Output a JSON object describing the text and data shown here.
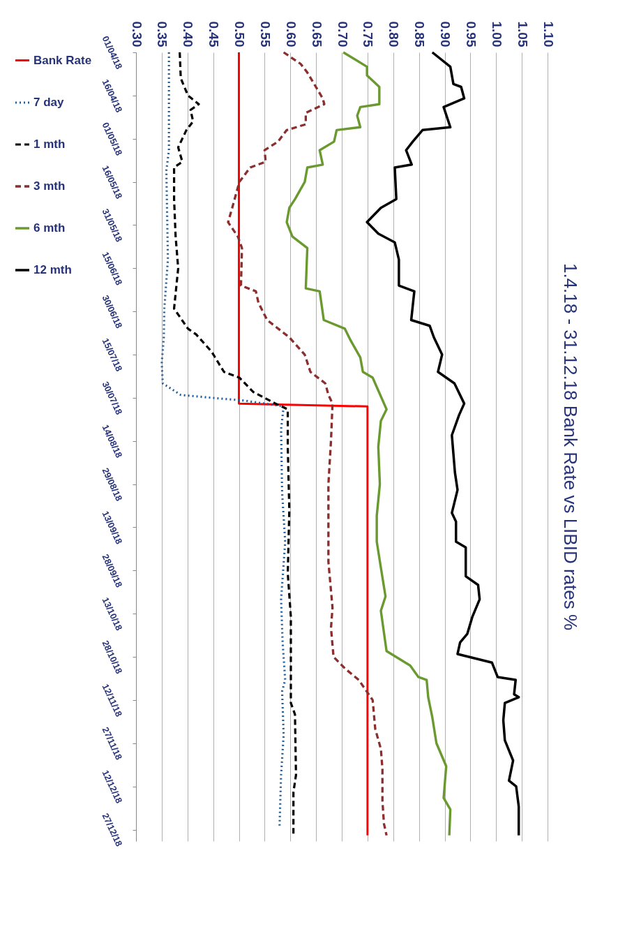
{
  "chart_data": {
    "type": "line",
    "title": "1.4.18 - 31.12.18 Bank Rate vs LIBID rates %",
    "orientation": "horizontal",
    "ylim": [
      "--12-31",
      "--04-01"
    ],
    "yticks": [
      {
        "value": "--04-01",
        "label": "01/04/18"
      },
      {
        "value": "--04-16",
        "label": "16/04/18"
      },
      {
        "value": "--05-01",
        "label": "01/05/18"
      },
      {
        "value": "--05-16",
        "label": "16/05/18"
      },
      {
        "value": "--05-31",
        "label": "31/05/18"
      },
      {
        "value": "--06-15",
        "label": "15/06/18"
      },
      {
        "value": "--06-30",
        "label": "30/06/18"
      },
      {
        "value": "--07-15",
        "label": "15/07/18"
      },
      {
        "value": "--07-30",
        "label": "30/07/18"
      },
      {
        "value": "--08-14",
        "label": "14/08/18"
      },
      {
        "value": "--08-29",
        "label": "29/08/18"
      },
      {
        "value": "--09-13",
        "label": "13/09/18"
      },
      {
        "value": "--09-28",
        "label": "28/09/18"
      },
      {
        "value": "--10-13",
        "label": "13/10/18"
      },
      {
        "value": "--10-28",
        "label": "28/10/18"
      },
      {
        "value": "--11-12",
        "label": "12/11/18"
      },
      {
        "value": "--11-27",
        "label": "27/11/18"
      },
      {
        "value": "--12-12",
        "label": "12/12/18"
      },
      {
        "value": "--12-27",
        "label": "27/12/18"
      }
    ],
    "xlim": [
      0.3,
      1.1
    ],
    "xticks": [
      {
        "value": 0.3,
        "label": "0.30"
      },
      {
        "value": 0.35,
        "label": "0.35"
      },
      {
        "value": 0.4,
        "label": "0.40"
      },
      {
        "value": 0.45,
        "label": "0.45"
      },
      {
        "value": 0.5,
        "label": "0.50"
      },
      {
        "value": 0.55,
        "label": "0.55"
      },
      {
        "value": 0.6,
        "label": "0.60"
      },
      {
        "value": 0.65,
        "label": "0.65"
      },
      {
        "value": 0.7,
        "label": "0.70"
      },
      {
        "value": 0.75,
        "label": "0.75"
      },
      {
        "value": 0.8,
        "label": "0.80"
      },
      {
        "value": 0.85,
        "label": "0.85"
      },
      {
        "value": 0.9,
        "label": "0.90"
      },
      {
        "value": 0.95,
        "label": "0.95"
      },
      {
        "value": 1.0,
        "label": "1.00"
      },
      {
        "value": 1.05,
        "label": "1.05"
      },
      {
        "value": 1.1,
        "label": "1.10"
      }
    ],
    "grid": "x",
    "legend": "left",
    "marker": "none",
    "series": [
      {
        "name": "Bank Rate",
        "color": "#ff0000",
        "line_style": "solid",
        "x": [
          "--04-01",
          "--08-01",
          "--08-02",
          "--12-29"
        ],
        "values": [
          0.5,
          0.5,
          0.75,
          0.75
        ]
      },
      {
        "name": "7 day",
        "color": "#1f5c99",
        "line_style": "dotted",
        "x": [
          "--04-01",
          "--05-05",
          "--05-12",
          "--06-12",
          "--06-29",
          "--07-09",
          "--07-18",
          "--07-25",
          "--07-29",
          "--07-30",
          "--07-31",
          "--08-02",
          "--08-10",
          "--09-01",
          "--09-18",
          "--10-08",
          "--10-23",
          "--11-05",
          "--11-09",
          "--11-24",
          "--12-08",
          "--12-26"
        ],
        "values": [
          0.364,
          0.364,
          0.359,
          0.362,
          0.355,
          0.354,
          0.35,
          0.352,
          0.387,
          0.447,
          0.512,
          0.587,
          0.582,
          0.584,
          0.59,
          0.582,
          0.585,
          0.59,
          0.584,
          0.587,
          0.582,
          0.579
        ]
      },
      {
        "name": "1 mth",
        "color": "#000000",
        "line_style": "dashed",
        "x": [
          "--04-01",
          "--04-10",
          "--04-16",
          "--04-19",
          "--04-21",
          "--04-25",
          "--04-28",
          "--05-04",
          "--05-09",
          "--05-11",
          "--05-22",
          "--06-04",
          "--06-15",
          "--06-29",
          "--07-06",
          "--07-08",
          "--07-14",
          "--07-21",
          "--07-23",
          "--07-28",
          "--08-01",
          "--08-03",
          "--08-16",
          "--09-07",
          "--09-29",
          "--10-14",
          "--11-13",
          "--11-17",
          "--12-08",
          "--12-14",
          "--12-29"
        ],
        "values": [
          0.385,
          0.387,
          0.401,
          0.422,
          0.406,
          0.411,
          0.398,
          0.382,
          0.39,
          0.374,
          0.374,
          0.377,
          0.382,
          0.374,
          0.401,
          0.417,
          0.447,
          0.471,
          0.501,
          0.528,
          0.571,
          0.595,
          0.595,
          0.598,
          0.595,
          0.601,
          0.601,
          0.609,
          0.611,
          0.606,
          0.606
        ]
      },
      {
        "name": "3 mth",
        "color": "#8b2e2e",
        "line_style": "dashed",
        "x": [
          "--04-01",
          "--04-05",
          "--04-08",
          "--04-17",
          "--04-19",
          "--04-22",
          "--04-26",
          "--04-28",
          "--05-02",
          "--05-05",
          "--05-09",
          "--05-11",
          "--05-16",
          "--05-25",
          "--05-30",
          "--06-04",
          "--06-08",
          "--06-21",
          "--06-23",
          "--06-27",
          "--07-03",
          "--07-09",
          "--07-15",
          "--07-21",
          "--07-25",
          "--07-29",
          "--08-01",
          "--08-14",
          "--08-29",
          "--09-12",
          "--09-25",
          "--10-11",
          "--10-18",
          "--10-28",
          "--11-01",
          "--11-05",
          "--11-12",
          "--11-22",
          "--11-29",
          "--12-06",
          "--12-17",
          "--12-25",
          "--12-29"
        ],
        "values": [
          0.587,
          0.62,
          0.633,
          0.663,
          0.666,
          0.63,
          0.63,
          0.593,
          0.576,
          0.55,
          0.552,
          0.522,
          0.501,
          0.487,
          0.479,
          0.498,
          0.506,
          0.504,
          0.533,
          0.538,
          0.555,
          0.598,
          0.628,
          0.639,
          0.668,
          0.674,
          0.682,
          0.679,
          0.674,
          0.674,
          0.674,
          0.682,
          0.679,
          0.684,
          0.706,
          0.733,
          0.76,
          0.765,
          0.776,
          0.779,
          0.779,
          0.782,
          0.787
        ]
      },
      {
        "name": "6 mth",
        "color": "#6a9a2f",
        "line_style": "solid",
        "x": [
          "--04-01",
          "--04-06",
          "--04-09",
          "--04-13",
          "--04-19",
          "--04-20",
          "--04-23",
          "--04-27",
          "--04-28",
          "--05-02",
          "--05-05",
          "--05-10",
          "--05-11",
          "--05-16",
          "--05-22",
          "--05-25",
          "--05-30",
          "--06-04",
          "--06-08",
          "--06-22",
          "--06-23",
          "--07-03",
          "--07-06",
          "--07-10",
          "--07-16",
          "--07-21",
          "--07-23",
          "--08-03",
          "--08-07",
          "--08-16",
          "--08-29",
          "--09-09",
          "--09-18",
          "--09-27",
          "--10-07",
          "--10-12",
          "--10-26",
          "--10-31",
          "--11-04",
          "--11-05",
          "--11-11",
          "--11-18",
          "--11-27",
          "--12-05",
          "--12-16",
          "--12-20",
          "--12-29"
        ],
        "values": [
          0.703,
          0.749,
          0.749,
          0.773,
          0.773,
          0.736,
          0.73,
          0.736,
          0.69,
          0.685,
          0.657,
          0.663,
          0.633,
          0.628,
          0.609,
          0.598,
          0.593,
          0.604,
          0.633,
          0.63,
          0.657,
          0.665,
          0.706,
          0.717,
          0.736,
          0.741,
          0.76,
          0.787,
          0.776,
          0.771,
          0.774,
          0.768,
          0.768,
          0.776,
          0.785,
          0.776,
          0.787,
          0.833,
          0.849,
          0.865,
          0.868,
          0.876,
          0.884,
          0.903,
          0.898,
          0.911,
          0.909
        ]
      },
      {
        "name": "12 mth",
        "color": "#000000",
        "line_style": "solid",
        "x": [
          "--04-01",
          "--04-06",
          "--04-12",
          "--04-13",
          "--04-17",
          "--04-20",
          "--04-27",
          "--04-28",
          "--05-02",
          "--05-05",
          "--05-10",
          "--05-11",
          "--05-22",
          "--05-25",
          "--05-30",
          "--06-03",
          "--06-06",
          "--06-12",
          "--06-21",
          "--06-23",
          "--07-03",
          "--07-05",
          "--07-09",
          "--07-15",
          "--07-21",
          "--07-25",
          "--08-01",
          "--08-05",
          "--08-12",
          "--08-25",
          "--08-31",
          "--09-08",
          "--09-11",
          "--09-18",
          "--09-20",
          "--09-30",
          "--10-03",
          "--10-08",
          "--10-14",
          "--10-20",
          "--10-23",
          "--10-27",
          "--10-30",
          "--11-04",
          "--11-05",
          "--11-10",
          "--11-11",
          "--11-13",
          "--11-19",
          "--11-26",
          "--12-03",
          "--12-10",
          "--12-12",
          "--12-19",
          "--12-29"
        ],
        "values": [
          0.876,
          0.911,
          0.917,
          0.932,
          0.938,
          0.898,
          0.911,
          0.857,
          0.838,
          0.825,
          0.836,
          0.803,
          0.806,
          0.776,
          0.749,
          0.771,
          0.803,
          0.811,
          0.811,
          0.841,
          0.835,
          0.871,
          0.879,
          0.895,
          0.887,
          0.919,
          0.938,
          0.928,
          0.914,
          0.92,
          0.925,
          0.914,
          0.922,
          0.922,
          0.941,
          0.941,
          0.965,
          0.968,
          0.954,
          0.944,
          0.93,
          0.925,
          0.992,
          1.003,
          1.038,
          1.035,
          1.044,
          1.017,
          1.014,
          1.017,
          1.033,
          1.025,
          1.039,
          1.044,
          1.044
        ]
      }
    ]
  }
}
